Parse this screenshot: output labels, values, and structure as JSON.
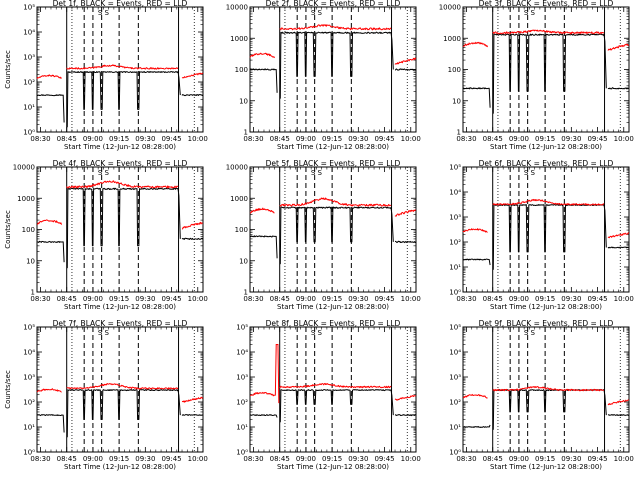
{
  "figure": {
    "colors": {
      "events": "#000000",
      "lld": "#ff0000",
      "axis": "#000000",
      "background": "#ffffff"
    }
  },
  "chart_data": [
    {
      "type": "line",
      "title": "Det 1f, BLACK = Events, RED = LLD",
      "xlabel": "Start Time (12-Jun-12 08:28:00)",
      "ylabel": "Counts/sec",
      "scale": "log",
      "ylim": [
        1,
        100000
      ],
      "yticks": [
        "10⁰",
        "10¹",
        "10²",
        "10³",
        "10⁴",
        "10⁵"
      ],
      "xlim": [
        0,
        95
      ],
      "xticks": [
        "08:30",
        "08:45",
        "09:00",
        "09:15",
        "09:30",
        "09:45",
        "10:00"
      ],
      "marker_text": "S S",
      "series": [
        {
          "name": "Events",
          "color": "#000000",
          "level": 250,
          "pre_level": 30,
          "post_level": 30,
          "dip_level": 8
        },
        {
          "name": "LLD",
          "color": "#ff0000",
          "level": 350,
          "pre_level": 140,
          "post_level": 150,
          "hump": 1.3
        }
      ]
    },
    {
      "type": "line",
      "title": "Det 2f, BLACK = Events, RED = LLD",
      "xlabel": "Start Time (12-Jun-12 08:28:00)",
      "ylabel": "",
      "scale": "log",
      "ylim": [
        1,
        10000
      ],
      "yticks": [
        "1",
        "10",
        "100",
        "1000",
        "10000"
      ],
      "xlim": [
        0,
        95
      ],
      "xticks": [
        "08:30",
        "08:45",
        "09:00",
        "09:15",
        "09:30",
        "09:45",
        "10:00"
      ],
      "marker_text": "S S",
      "series": [
        {
          "name": "Events",
          "color": "#000000",
          "level": 1500,
          "pre_level": 100,
          "post_level": 100,
          "dip_level": 60
        },
        {
          "name": "LLD",
          "color": "#ff0000",
          "level": 2000,
          "pre_level": 250,
          "post_level": 150,
          "hump": 1.3
        }
      ]
    },
    {
      "type": "line",
      "title": "Det 3f, BLACK = Events, RED = LLD",
      "xlabel": "Start Time (12-Jun-12 08:28:00)",
      "ylabel": "",
      "scale": "log",
      "ylim": [
        1,
        10000
      ],
      "yticks": [
        "1",
        "10",
        "100",
        "1000",
        "10000"
      ],
      "xlim": [
        0,
        95
      ],
      "xticks": [
        "08:30",
        "08:45",
        "09:00",
        "09:15",
        "09:30",
        "09:45",
        "10:00"
      ],
      "marker_text": "S S",
      "series": [
        {
          "name": "Events",
          "color": "#000000",
          "level": 1300,
          "pre_level": 25,
          "post_level": 25,
          "dip_level": 20
        },
        {
          "name": "LLD",
          "color": "#ff0000",
          "level": 1500,
          "pre_level": 550,
          "post_level": 420,
          "hump": 1.15
        }
      ]
    },
    {
      "type": "line",
      "title": "Det 4f, BLACK = Events, RED = LLD",
      "xlabel": "Start Time (12-Jun-12 08:28:00)",
      "ylabel": "Counts/sec",
      "scale": "log",
      "ylim": [
        1,
        10000
      ],
      "yticks": [
        "1",
        "10",
        "100",
        "1000",
        "10000"
      ],
      "xlim": [
        0,
        95
      ],
      "xticks": [
        "08:30",
        "08:45",
        "09:00",
        "09:15",
        "09:30",
        "09:45",
        "10:00"
      ],
      "marker_text": "S S",
      "series": [
        {
          "name": "Events",
          "color": "#000000",
          "level": 2000,
          "pre_level": 40,
          "post_level": 50,
          "dip_level": 30
        },
        {
          "name": "LLD",
          "color": "#ff0000",
          "level": 2300,
          "pre_level": 150,
          "post_level": 110,
          "hump": 1.5
        }
      ]
    },
    {
      "type": "line",
      "title": "Det 5f, BLACK = Events, RED = LLD",
      "xlabel": "Start Time (12-Jun-12 08:28:00)",
      "ylabel": "",
      "scale": "log",
      "ylim": [
        1,
        10000
      ],
      "yticks": [
        "1",
        "10",
        "100",
        "1000",
        "10000"
      ],
      "xlim": [
        0,
        95
      ],
      "xticks": [
        "08:30",
        "08:45",
        "09:00",
        "09:15",
        "09:30",
        "09:45",
        "10:00"
      ],
      "marker_text": "S S",
      "series": [
        {
          "name": "Events",
          "color": "#000000",
          "level": 500,
          "pre_level": 60,
          "post_level": 40,
          "dip_level": 40
        },
        {
          "name": "LLD",
          "color": "#ff0000",
          "level": 600,
          "pre_level": 350,
          "post_level": 280,
          "hump": 1.6
        }
      ]
    },
    {
      "type": "line",
      "title": "Det 6f, BLACK = Events, RED = LLD",
      "xlabel": "Start Time (12-Jun-12 08:28:00)",
      "ylabel": "",
      "scale": "log",
      "ylim": [
        1,
        100000
      ],
      "yticks": [
        "10⁰",
        "10¹",
        "10²",
        "10³",
        "10⁴",
        "10⁵"
      ],
      "xlim": [
        0,
        95
      ],
      "xticks": [
        "08:30",
        "08:45",
        "09:00",
        "09:15",
        "09:30",
        "09:45",
        "10:00"
      ],
      "marker_text": "S S",
      "series": [
        {
          "name": "Events",
          "color": "#000000",
          "level": 3000,
          "pre_level": 20,
          "post_level": 60,
          "dip_level": 40
        },
        {
          "name": "LLD",
          "color": "#ff0000",
          "level": 3200,
          "pre_level": 250,
          "post_level": 150,
          "hump": 1.5
        }
      ]
    },
    {
      "type": "line",
      "title": "Det 7f, BLACK = Events, RED = LLD",
      "xlabel": "Start Time (12-Jun-12 08:28:00)",
      "ylabel": "Counts/sec",
      "scale": "log",
      "ylim": [
        1,
        100000
      ],
      "yticks": [
        "10⁰",
        "10¹",
        "10²",
        "10³",
        "10⁴",
        "10⁵"
      ],
      "xlim": [
        0,
        95
      ],
      "xticks": [
        "08:30",
        "08:45",
        "09:00",
        "09:15",
        "09:30",
        "09:45",
        "10:00"
      ],
      "marker_text": "S S",
      "series": [
        {
          "name": "Events",
          "color": "#000000",
          "level": 300,
          "pre_level": 30,
          "post_level": 30,
          "dip_level": 20
        },
        {
          "name": "LLD",
          "color": "#ff0000",
          "level": 350,
          "pre_level": 250,
          "post_level": 100,
          "hump": 1.5
        }
      ]
    },
    {
      "type": "line",
      "title": "Det 8f, BLACK = Events, RED = LLD",
      "xlabel": "Start Time (12-Jun-12 08:28:00)",
      "ylabel": "",
      "scale": "log",
      "ylim": [
        1,
        100000
      ],
      "yticks": [
        "10⁰",
        "10¹",
        "10²",
        "10³",
        "10⁴",
        "10⁵"
      ],
      "xlim": [
        0,
        95
      ],
      "xticks": [
        "08:30",
        "08:45",
        "09:00",
        "09:15",
        "09:30",
        "09:45",
        "10:00"
      ],
      "marker_text": "S S",
      "series": [
        {
          "name": "Events",
          "color": "#000000",
          "level": 300,
          "pre_level": 30,
          "post_level": 30,
          "dip_level": 80
        },
        {
          "name": "LLD",
          "color": "#ff0000",
          "level": 400,
          "pre_level": 180,
          "post_level": 120,
          "hump": 1.3,
          "spike": 20000
        }
      ]
    },
    {
      "type": "line",
      "title": "Det 9f, BLACK = Events, RED = LLD",
      "xlabel": "Start Time (12-Jun-12 08:28:00)",
      "ylabel": "",
      "scale": "log",
      "ylim": [
        1,
        100000
      ],
      "yticks": [
        "10⁰",
        "10¹",
        "10²",
        "10³",
        "10⁴",
        "10⁵"
      ],
      "xlim": [
        0,
        95
      ],
      "xticks": [
        "08:30",
        "08:45",
        "09:00",
        "09:15",
        "09:30",
        "09:45",
        "10:00"
      ],
      "marker_text": "S S",
      "series": [
        {
          "name": "Events",
          "color": "#000000",
          "level": 300,
          "pre_level": 10,
          "post_level": 30,
          "dip_level": 40
        },
        {
          "name": "LLD",
          "color": "#ff0000",
          "level": 300,
          "pre_level": 150,
          "post_level": 80,
          "hump": 1.3
        }
      ]
    }
  ]
}
